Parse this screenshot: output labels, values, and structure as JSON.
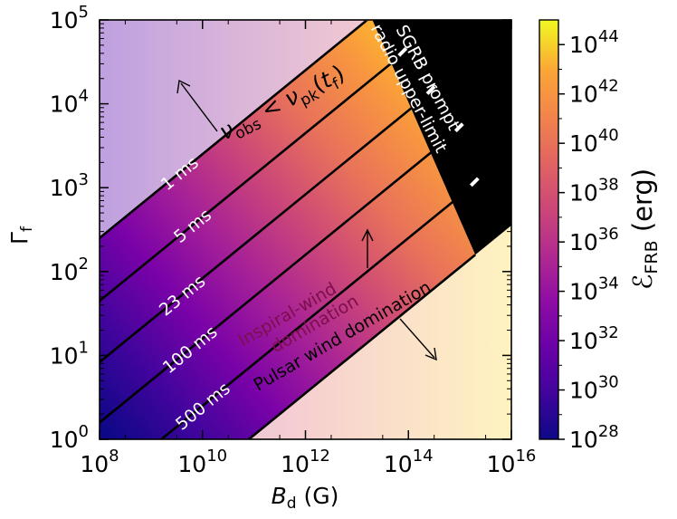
{
  "chart_data": {
    "type": "heatmap",
    "title": "",
    "xlabel": {
      "main": "B",
      "sub": "d",
      "unit": " (G)"
    },
    "ylabel": {
      "main": "Γ",
      "sub": "f"
    },
    "colorbar_label": {
      "main": "ℰ",
      "sub": "FRB",
      "unit": " (erg)"
    },
    "x_log_range": [
      8,
      16
    ],
    "y_log_range": [
      0,
      5
    ],
    "cbar_log_range": [
      28,
      45
    ],
    "x_ticks": [
      {
        "base": "10",
        "exp": "8",
        "log": 8
      },
      {
        "base": "10",
        "exp": "10",
        "log": 10
      },
      {
        "base": "10",
        "exp": "12",
        "log": 12
      },
      {
        "base": "10",
        "exp": "14",
        "log": 14
      },
      {
        "base": "10",
        "exp": "16",
        "log": 16
      }
    ],
    "y_ticks": [
      {
        "base": "10",
        "exp": "0",
        "log": 0
      },
      {
        "base": "10",
        "exp": "1",
        "log": 1
      },
      {
        "base": "10",
        "exp": "2",
        "log": 2
      },
      {
        "base": "10",
        "exp": "3",
        "log": 3
      },
      {
        "base": "10",
        "exp": "4",
        "log": 4
      },
      {
        "base": "10",
        "exp": "5",
        "log": 5
      }
    ],
    "cbar_ticks": [
      {
        "base": "10",
        "exp": "28",
        "log": 28
      },
      {
        "base": "10",
        "exp": "30",
        "log": 30
      },
      {
        "base": "10",
        "exp": "32",
        "log": 32
      },
      {
        "base": "10",
        "exp": "34",
        "log": 34
      },
      {
        "base": "10",
        "exp": "36",
        "log": 36
      },
      {
        "base": "10",
        "exp": "38",
        "log": 38
      },
      {
        "base": "10",
        "exp": "40",
        "log": 40
      },
      {
        "base": "10",
        "exp": "42",
        "log": 42
      },
      {
        "base": "10",
        "exp": "44",
        "log": 44
      }
    ],
    "boundary_upper": {
      "slope": 0.5,
      "y_at_x8": 2.4
    },
    "boundary_lower": {
      "slope": 0.5,
      "y_at_x8": -1.45
    },
    "radio_limit_x_log": [
      13.3,
      15.3
    ],
    "contours": [
      {
        "label": "1 ms",
        "y_at_x8": 2.4
      },
      {
        "label": "5 ms",
        "y_at_x8": 1.65
      },
      {
        "label": "23 ms",
        "y_at_x8": 0.92
      },
      {
        "label": "100 ms",
        "y_at_x8": 0.2
      },
      {
        "label": "500 ms",
        "y_at_x8": -0.6
      }
    ],
    "annotations": {
      "nu_condition": {
        "nu1": "ν",
        "sub1": "obs",
        "lt": " < ",
        "nu2": "ν",
        "sub2": "pk",
        "paren_open": "(",
        "t": "t",
        "sub3": "f",
        "paren_close": ")"
      },
      "sgrb_line1": "SGRB prompt",
      "sgrb_line2": "radio upper-limit",
      "inspiral_line1": "Inspiral-wind",
      "inspiral_line2": "domination",
      "pulsar": "Pulsar wind domination"
    },
    "colors": {
      "upper_left": "#bfa0e0",
      "upper_right": "#f2c9d2",
      "lower_left": "#e6c0e0",
      "lower_right": "#fff3c0",
      "black_region": "#000000"
    }
  }
}
